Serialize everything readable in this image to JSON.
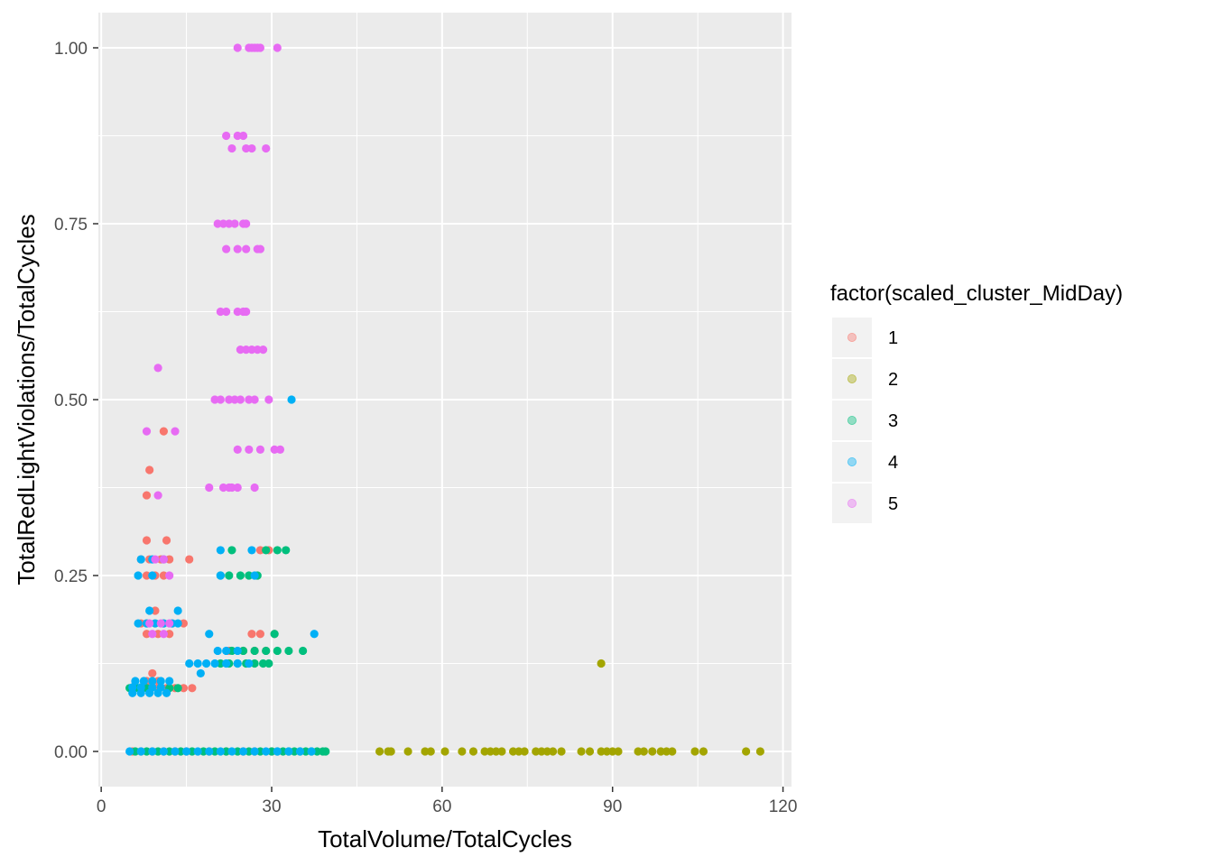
{
  "chart_data": {
    "type": "scatter",
    "xlabel": "TotalVolume/TotalCycles",
    "ylabel": "TotalRedLightViolations/TotalCycles",
    "xlim": [
      -0.5,
      121.5
    ],
    "ylim": [
      -0.05,
      1.05
    ],
    "x_ticks": [
      0,
      30,
      60,
      90,
      120
    ],
    "x_tick_labels": [
      "0",
      "30",
      "60",
      "90",
      "120"
    ],
    "y_ticks": [
      0,
      0.25,
      0.5,
      0.75,
      1.0
    ],
    "y_tick_labels": [
      "0.00",
      "0.25",
      "0.50",
      "0.75",
      "1.00"
    ],
    "grid": true,
    "legend": {
      "title": "factor(scaled_cluster_MidDay)",
      "position": "right",
      "entries": [
        "1",
        "2",
        "3",
        "4",
        "5"
      ]
    },
    "colors": {
      "panel_bg": "#ebebeb",
      "grid": "#ffffff",
      "s1": "#F8766D",
      "s2": "#A3A500",
      "s3": "#00BF7D",
      "s4": "#00B0F6",
      "s5": "#E76BF3"
    },
    "series": [
      {
        "name": "1",
        "color": "#F8766D",
        "points": [
          [
            5.5,
            0
          ],
          [
            7,
            0
          ],
          [
            9,
            0
          ],
          [
            11,
            0
          ],
          [
            13,
            0
          ],
          [
            15,
            0
          ],
          [
            19,
            0
          ],
          [
            22,
            0
          ],
          [
            25,
            0
          ],
          [
            27,
            0
          ],
          [
            30,
            0
          ],
          [
            5.5,
            0.09
          ],
          [
            7,
            0.09
          ],
          [
            8.5,
            0.09
          ],
          [
            10,
            0.09
          ],
          [
            11.5,
            0.09
          ],
          [
            13,
            0.09
          ],
          [
            14.5,
            0.09
          ],
          [
            16,
            0.09
          ],
          [
            8,
            0.1
          ],
          [
            10,
            0.1
          ],
          [
            9,
            0.111
          ],
          [
            7,
            0.182
          ],
          [
            8,
            0.182
          ],
          [
            9.5,
            0.182
          ],
          [
            11,
            0.182
          ],
          [
            12.5,
            0.182
          ],
          [
            14.5,
            0.182
          ],
          [
            8,
            0.167
          ],
          [
            10,
            0.167
          ],
          [
            12,
            0.167
          ],
          [
            9.5,
            0.2
          ],
          [
            8,
            0.25
          ],
          [
            9.5,
            0.25
          ],
          [
            11,
            0.25
          ],
          [
            7,
            0.273
          ],
          [
            8.5,
            0.273
          ],
          [
            10.5,
            0.273
          ],
          [
            12,
            0.273
          ],
          [
            15.5,
            0.273
          ],
          [
            8,
            0.3
          ],
          [
            11.5,
            0.3
          ],
          [
            8,
            0.364
          ],
          [
            8.5,
            0.4
          ],
          [
            11,
            0.455
          ],
          [
            22.5,
            0.143
          ],
          [
            25,
            0.143
          ],
          [
            27,
            0.143
          ],
          [
            29,
            0.143
          ],
          [
            26.5,
            0.167
          ],
          [
            28,
            0.167
          ],
          [
            30.5,
            0.167
          ],
          [
            28,
            0.286
          ],
          [
            29.5,
            0.286
          ]
        ]
      },
      {
        "name": "2",
        "color": "#A3A500",
        "points": [
          [
            49,
            0
          ],
          [
            50.5,
            0
          ],
          [
            51,
            0
          ],
          [
            54,
            0
          ],
          [
            57,
            0
          ],
          [
            58,
            0
          ],
          [
            60.5,
            0
          ],
          [
            63.5,
            0
          ],
          [
            65.5,
            0
          ],
          [
            67.5,
            0
          ],
          [
            68.5,
            0
          ],
          [
            69.5,
            0
          ],
          [
            70.5,
            0
          ],
          [
            72.5,
            0
          ],
          [
            73.5,
            0
          ],
          [
            74.5,
            0
          ],
          [
            76.5,
            0
          ],
          [
            77.5,
            0
          ],
          [
            78.5,
            0
          ],
          [
            79.5,
            0
          ],
          [
            81,
            0
          ],
          [
            84.5,
            0
          ],
          [
            86,
            0
          ],
          [
            88,
            0
          ],
          [
            89,
            0
          ],
          [
            90,
            0
          ],
          [
            91,
            0
          ],
          [
            94.5,
            0
          ],
          [
            95.5,
            0
          ],
          [
            97,
            0
          ],
          [
            98.5,
            0
          ],
          [
            99.5,
            0
          ],
          [
            100.5,
            0
          ],
          [
            104.5,
            0
          ],
          [
            106,
            0
          ],
          [
            113.5,
            0
          ],
          [
            116,
            0
          ],
          [
            88,
            0.125
          ]
        ]
      },
      {
        "name": "3",
        "color": "#00BF7D",
        "points": [
          [
            6,
            0
          ],
          [
            8,
            0
          ],
          [
            10,
            0
          ],
          [
            12,
            0
          ],
          [
            14,
            0
          ],
          [
            16,
            0
          ],
          [
            18,
            0
          ],
          [
            20,
            0
          ],
          [
            22,
            0
          ],
          [
            24,
            0
          ],
          [
            26,
            0
          ],
          [
            28,
            0
          ],
          [
            30,
            0
          ],
          [
            31,
            0
          ],
          [
            32,
            0
          ],
          [
            33,
            0
          ],
          [
            34,
            0
          ],
          [
            35,
            0
          ],
          [
            36,
            0
          ],
          [
            37,
            0
          ],
          [
            38,
            0
          ],
          [
            39,
            0
          ],
          [
            39.5,
            0
          ],
          [
            5,
            0.09
          ],
          [
            6.5,
            0.09
          ],
          [
            8,
            0.09
          ],
          [
            12,
            0.09
          ],
          [
            13.5,
            0.09
          ],
          [
            21,
            0.125
          ],
          [
            22.5,
            0.125
          ],
          [
            24,
            0.125
          ],
          [
            25.5,
            0.125
          ],
          [
            27,
            0.125
          ],
          [
            28.5,
            0.125
          ],
          [
            29.5,
            0.125
          ],
          [
            23,
            0.143
          ],
          [
            25,
            0.143
          ],
          [
            27,
            0.143
          ],
          [
            29,
            0.143
          ],
          [
            31,
            0.143
          ],
          [
            33,
            0.143
          ],
          [
            35.5,
            0.143
          ],
          [
            30.5,
            0.167
          ],
          [
            21,
            0.25
          ],
          [
            22.5,
            0.25
          ],
          [
            24.5,
            0.25
          ],
          [
            26,
            0.25
          ],
          [
            27.5,
            0.25
          ],
          [
            23,
            0.286
          ],
          [
            29,
            0.286
          ],
          [
            31,
            0.286
          ],
          [
            32.5,
            0.286
          ]
        ]
      },
      {
        "name": "4",
        "color": "#00B0F6",
        "points": [
          [
            5,
            0
          ],
          [
            7,
            0
          ],
          [
            9,
            0
          ],
          [
            11,
            0
          ],
          [
            13,
            0
          ],
          [
            15,
            0
          ],
          [
            17,
            0
          ],
          [
            19,
            0
          ],
          [
            21,
            0
          ],
          [
            23,
            0
          ],
          [
            25,
            0
          ],
          [
            27,
            0
          ],
          [
            29,
            0
          ],
          [
            31,
            0
          ],
          [
            33,
            0
          ],
          [
            35,
            0
          ],
          [
            37,
            0
          ],
          [
            5.5,
            0.083
          ],
          [
            7,
            0.083
          ],
          [
            8.5,
            0.083
          ],
          [
            10,
            0.083
          ],
          [
            11.5,
            0.083
          ],
          [
            6,
            0.1
          ],
          [
            7.5,
            0.1
          ],
          [
            9,
            0.1
          ],
          [
            10.5,
            0.1
          ],
          [
            12,
            0.1
          ],
          [
            5.5,
            0.091
          ],
          [
            7,
            0.091
          ],
          [
            9,
            0.091
          ],
          [
            10.5,
            0.091
          ],
          [
            17.5,
            0.111
          ],
          [
            15.5,
            0.125
          ],
          [
            17,
            0.125
          ],
          [
            18.5,
            0.125
          ],
          [
            20,
            0.125
          ],
          [
            22,
            0.125
          ],
          [
            24,
            0.125
          ],
          [
            26,
            0.125
          ],
          [
            20.5,
            0.143
          ],
          [
            22,
            0.143
          ],
          [
            24,
            0.143
          ],
          [
            19,
            0.167
          ],
          [
            37.5,
            0.167
          ],
          [
            6.5,
            0.182
          ],
          [
            8,
            0.182
          ],
          [
            9.5,
            0.182
          ],
          [
            11,
            0.182
          ],
          [
            12.5,
            0.182
          ],
          [
            13.5,
            0.182
          ],
          [
            8.5,
            0.2
          ],
          [
            13.5,
            0.2
          ],
          [
            6.5,
            0.25
          ],
          [
            9,
            0.25
          ],
          [
            21,
            0.25
          ],
          [
            27,
            0.25
          ],
          [
            7,
            0.273
          ],
          [
            9,
            0.273
          ],
          [
            11,
            0.273
          ],
          [
            21,
            0.286
          ],
          [
            26.5,
            0.286
          ],
          [
            33.5,
            0.5
          ]
        ]
      },
      {
        "name": "5",
        "color": "#E76BF3",
        "points": [
          [
            24,
            1.0
          ],
          [
            26,
            1.0
          ],
          [
            26.5,
            1.0
          ],
          [
            27,
            1.0
          ],
          [
            27.5,
            1.0
          ],
          [
            28,
            1.0
          ],
          [
            31,
            1.0
          ],
          [
            22,
            0.875
          ],
          [
            24,
            0.875
          ],
          [
            25,
            0.875
          ],
          [
            23,
            0.857
          ],
          [
            25.5,
            0.857
          ],
          [
            26.5,
            0.857
          ],
          [
            29,
            0.857
          ],
          [
            20.5,
            0.75
          ],
          [
            21.5,
            0.75
          ],
          [
            22.5,
            0.75
          ],
          [
            23.5,
            0.75
          ],
          [
            25,
            0.75
          ],
          [
            25.5,
            0.75
          ],
          [
            22,
            0.714
          ],
          [
            24,
            0.714
          ],
          [
            25.5,
            0.714
          ],
          [
            27.5,
            0.714
          ],
          [
            28,
            0.714
          ],
          [
            21,
            0.625
          ],
          [
            22,
            0.625
          ],
          [
            24,
            0.625
          ],
          [
            25,
            0.625
          ],
          [
            25.5,
            0.625
          ],
          [
            24.5,
            0.571
          ],
          [
            25.5,
            0.571
          ],
          [
            26.5,
            0.571
          ],
          [
            27.5,
            0.571
          ],
          [
            28.5,
            0.571
          ],
          [
            10,
            0.545
          ],
          [
            20,
            0.5
          ],
          [
            21,
            0.5
          ],
          [
            22.5,
            0.5
          ],
          [
            23.5,
            0.5
          ],
          [
            24.5,
            0.5
          ],
          [
            26,
            0.5
          ],
          [
            27,
            0.5
          ],
          [
            29.5,
            0.5
          ],
          [
            8,
            0.455
          ],
          [
            13,
            0.455
          ],
          [
            24,
            0.429
          ],
          [
            26,
            0.429
          ],
          [
            28,
            0.429
          ],
          [
            30.5,
            0.429
          ],
          [
            31.5,
            0.429
          ],
          [
            19,
            0.375
          ],
          [
            21.5,
            0.375
          ],
          [
            22.5,
            0.375
          ],
          [
            23,
            0.375
          ],
          [
            24,
            0.375
          ],
          [
            27,
            0.375
          ],
          [
            10,
            0.364
          ],
          [
            9.5,
            0.273
          ],
          [
            11,
            0.273
          ],
          [
            12,
            0.25
          ],
          [
            8.5,
            0.182
          ],
          [
            10.5,
            0.182
          ],
          [
            12,
            0.182
          ],
          [
            9,
            0.167
          ],
          [
            11,
            0.167
          ]
        ]
      }
    ]
  }
}
